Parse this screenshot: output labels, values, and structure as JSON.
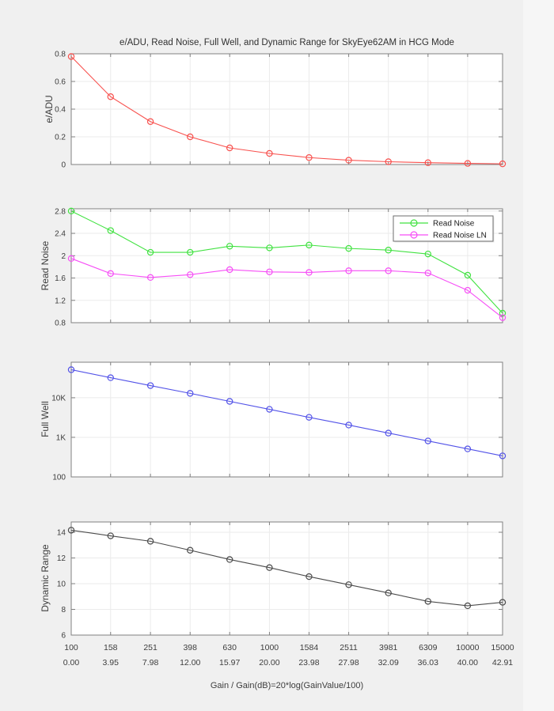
{
  "figure": {
    "background": "#f0f0f0",
    "plot_background": "#ffffff",
    "grid_color": "#ebebeb",
    "axis_color": "#808080",
    "tick_text_color": "#3d3d3d"
  },
  "chart_data": {
    "type": "line",
    "layout": "4 stacked subplots, shared log-scale x axis",
    "title": "e/ADU, Read Noise, Full Well, and Dynamic Range for SkyEye62AM in HCG Mode",
    "xlabel": "Gain / Gain(dB)=20*log(GainValue/100)",
    "xscale": "log",
    "x": [
      100,
      158,
      251,
      398,
      630,
      1000,
      1584,
      2511,
      3981,
      6309,
      10000,
      15000
    ],
    "x_tick_labels_gain": [
      "100",
      "158",
      "251",
      "398",
      "630",
      "1000",
      "1584",
      "2511",
      "3981",
      "6309",
      "10000",
      "15000"
    ],
    "x_tick_labels_db": [
      "0.00",
      "3.95",
      "7.98",
      "12.00",
      "15.97",
      "20.00",
      "23.98",
      "27.98",
      "32.09",
      "36.03",
      "40.00",
      "42.91"
    ],
    "grid": true,
    "subplots": [
      {
        "ylabel": "e/ADU",
        "yscale": "linear",
        "ylim": [
          0,
          0.8
        ],
        "yticks": [
          0,
          0.2,
          0.4,
          0.6,
          0.8
        ],
        "ytick_labels": [
          "0",
          "0.2",
          "0.4",
          "0.6",
          "0.8"
        ],
        "series": [
          {
            "name": "e/ADU",
            "color": "#f8514e",
            "values": [
              0.78,
              0.49,
              0.31,
              0.2,
              0.12,
              0.08,
              0.05,
              0.031,
              0.02,
              0.013,
              0.008,
              0.005
            ]
          }
        ]
      },
      {
        "ylabel": "Read Noise",
        "yscale": "linear",
        "ylim": [
          0.8,
          2.84
        ],
        "yticks": [
          0.8,
          1.2,
          1.6,
          2,
          2.4,
          2.8
        ],
        "ytick_labels": [
          "0.8",
          "1.2",
          "1.6",
          "2",
          "2.4",
          "2.8"
        ],
        "legend": {
          "position": "northeast"
        },
        "series": [
          {
            "name": "Read Noise",
            "color": "#41e241",
            "values": [
              2.8,
              2.45,
              2.06,
              2.06,
              2.17,
              2.14,
              2.19,
              2.13,
              2.1,
              2.03,
              1.65,
              0.97
            ]
          },
          {
            "name": "Read Noise LN",
            "color": "#f64ef6",
            "values": [
              1.95,
              1.68,
              1.61,
              1.66,
              1.75,
              1.71,
              1.7,
              1.73,
              1.73,
              1.69,
              1.38,
              0.89
            ]
          }
        ]
      },
      {
        "ylabel": "Full Well",
        "yscale": "log",
        "ylim": [
          100,
          79000
        ],
        "yticks": [
          100,
          1000,
          10000
        ],
        "ytick_labels": [
          "100",
          "1K",
          "10K"
        ],
        "series": [
          {
            "name": "Full Well",
            "color": "#5353e8",
            "values": [
              51100,
              32100,
              20300,
              12900,
              8100,
              5100,
              3200,
              2040,
              1280,
              810,
              510,
              340
            ]
          }
        ]
      },
      {
        "ylabel": "Dynamic Range",
        "yscale": "linear",
        "ylim": [
          6,
          14.8
        ],
        "yticks": [
          6,
          8,
          10,
          12,
          14
        ],
        "ytick_labels": [
          "6",
          "8",
          "10",
          "12",
          "14"
        ],
        "series": [
          {
            "name": "Dynamic Range",
            "color": "#4b4b4b",
            "values": [
              14.16,
              13.72,
              13.3,
              12.6,
              11.88,
              11.25,
              10.55,
              9.92,
              9.28,
              8.62,
              8.28,
              8.55
            ]
          }
        ]
      }
    ]
  }
}
